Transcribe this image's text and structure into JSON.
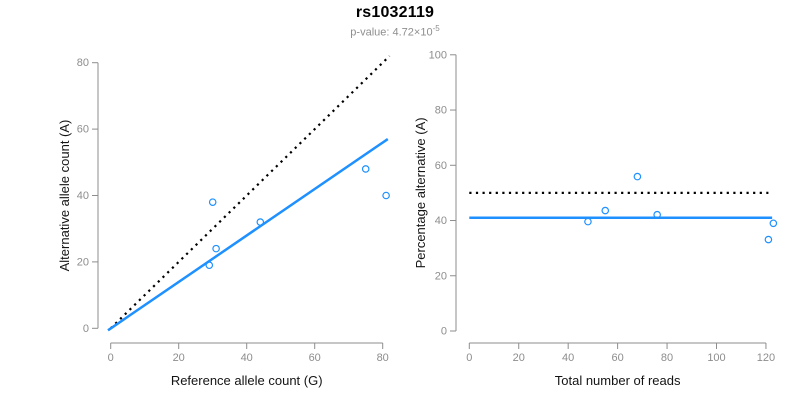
{
  "title": "rs1032119",
  "subtitle": {
    "text": "p-value: 4.72×10",
    "exponent": "-5"
  },
  "colors": {
    "accent_blue": "#1E90FF",
    "dotted_line": "#000000",
    "axis_gray": "#8d8d8d",
    "tick_label_gray": "#8d8d8d",
    "axis_label_color": "#141414",
    "subtitle_gray": "#8e8e8e",
    "background": "#ffffff"
  },
  "chart_data": [
    {
      "type": "scatter",
      "title": "",
      "xlabel": "Reference allele count (G)",
      "ylabel": "Alternative allele count (A)",
      "xticks": [
        0,
        20,
        40,
        60,
        80
      ],
      "yticks": [
        0,
        20,
        40,
        60,
        80
      ],
      "xlim": [
        -2,
        84
      ],
      "ylim": [
        -2,
        84
      ],
      "grid": false,
      "legend": "none",
      "points": [
        [
          30,
          38
        ],
        [
          44,
          32
        ],
        [
          31,
          24
        ],
        [
          29,
          19
        ],
        [
          75,
          48
        ],
        [
          81,
          40
        ]
      ],
      "lines": [
        {
          "name": "identity-line",
          "style": "dotted",
          "x1": 0,
          "y1": 0,
          "x2": 82,
          "y2": 82
        },
        {
          "name": "regression-line",
          "style": "solid",
          "x1": -0.8,
          "y1": -0.6,
          "x2": 81.5,
          "y2": 57
        }
      ]
    },
    {
      "type": "scatter",
      "title": "",
      "xlabel": "Total number of reads",
      "ylabel": "Percentage alternative (A)",
      "xticks": [
        0,
        20,
        40,
        60,
        80,
        100,
        120
      ],
      "yticks": [
        0,
        20,
        40,
        60,
        80,
        100
      ],
      "xlim": [
        -4,
        126
      ],
      "ylim": [
        -3.5,
        101.5
      ],
      "grid": false,
      "legend": "none",
      "points": [
        [
          68,
          55.9
        ],
        [
          76,
          42.1
        ],
        [
          55,
          43.6
        ],
        [
          48,
          39.6
        ],
        [
          123,
          39.0
        ],
        [
          121,
          33.1
        ]
      ],
      "lines": [
        {
          "name": "fifty-percent-line",
          "style": "dotted",
          "x1": 0,
          "y1": 50,
          "x2": 121,
          "y2": 50
        },
        {
          "name": "mean-percentage-line",
          "style": "solid",
          "x1": 0,
          "y1": 41,
          "x2": 122.5,
          "y2": 41
        }
      ]
    }
  ]
}
